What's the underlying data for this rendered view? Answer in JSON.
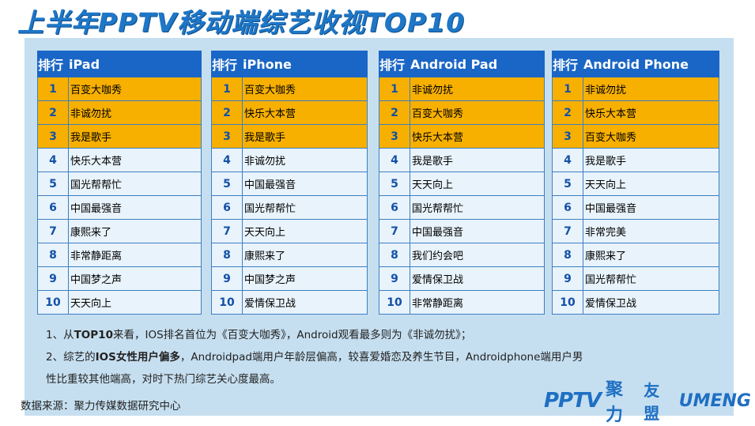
{
  "title": "上半年PPTV移动端综艺收视TOP10",
  "rank_header": "排行",
  "tables": [
    {
      "platform": "iPad",
      "rows": [
        {
          "n": "1",
          "name": "百变大咖秀"
        },
        {
          "n": "2",
          "name": "非诚勿扰"
        },
        {
          "n": "3",
          "name": "我是歌手"
        },
        {
          "n": "4",
          "name": "快乐大本营"
        },
        {
          "n": "5",
          "name": "国光帮帮忙"
        },
        {
          "n": "6",
          "name": "中国最强音"
        },
        {
          "n": "7",
          "name": "康熙来了"
        },
        {
          "n": "8",
          "name": "非常静距离"
        },
        {
          "n": "9",
          "name": "中国梦之声"
        },
        {
          "n": "10",
          "name": "天天向上"
        }
      ]
    },
    {
      "platform": "iPhone",
      "rows": [
        {
          "n": "1",
          "name": "百变大咖秀"
        },
        {
          "n": "2",
          "name": "快乐大本营"
        },
        {
          "n": "3",
          "name": "我是歌手"
        },
        {
          "n": "4",
          "name": "非诚勿扰"
        },
        {
          "n": "5",
          "name": "中国最强音"
        },
        {
          "n": "6",
          "name": "国光帮帮忙"
        },
        {
          "n": "7",
          "name": "天天向上"
        },
        {
          "n": "8",
          "name": "康熙来了"
        },
        {
          "n": "9",
          "name": "中国梦之声"
        },
        {
          "n": "10",
          "name": "爱情保卫战"
        }
      ]
    },
    {
      "platform": "Android Pad",
      "rows": [
        {
          "n": "1",
          "name": "非诚勿扰"
        },
        {
          "n": "2",
          "name": "百变大咖秀"
        },
        {
          "n": "3",
          "name": "快乐大本营"
        },
        {
          "n": "4",
          "name": "我是歌手"
        },
        {
          "n": "5",
          "name": "天天向上"
        },
        {
          "n": "6",
          "name": "国光帮帮忙"
        },
        {
          "n": "7",
          "name": "中国最强音"
        },
        {
          "n": "8",
          "name": "我们约会吧"
        },
        {
          "n": "9",
          "name": "爱情保卫战"
        },
        {
          "n": "10",
          "name": "非常静距离"
        }
      ]
    },
    {
      "platform": "Android Phone",
      "rows": [
        {
          "n": "1",
          "name": "非诚勿扰"
        },
        {
          "n": "2",
          "name": "快乐大本营"
        },
        {
          "n": "3",
          "name": "百变大咖秀"
        },
        {
          "n": "4",
          "name": "我是歌手"
        },
        {
          "n": "5",
          "name": "天天向上"
        },
        {
          "n": "6",
          "name": "中国最强音"
        },
        {
          "n": "7",
          "name": "非常完美"
        },
        {
          "n": "8",
          "name": "康熙来了"
        },
        {
          "n": "9",
          "name": "国光帮帮忙"
        },
        {
          "n": "10",
          "name": "爱情保卫战"
        }
      ]
    }
  ],
  "notes": {
    "line1_a": "1、从",
    "line1_b": "TOP10",
    "line1_c": "来看，IOS排名首位为《百变大咖秀》，Android观看最多则为《非诚勿扰》；",
    "line2_a": "2、综艺的",
    "line2_b": "IOS女性用户偏多",
    "line2_c": "，Androidpad端用户年龄层偏高，较喜爱婚恋及养生节目，Androidphone端用户男",
    "line3": "性比重较其他端高，对时下热门综艺关心度最高。"
  },
  "source": "数据来源：聚力传媒数据研究中心",
  "logos": {
    "pptv": "PPTV",
    "juli": "聚力",
    "youmeng": "友盟",
    "umeng": "UMENG"
  },
  "colors": {
    "header": "#1a66c6",
    "highlight": "#f7b000",
    "row": "#e8f3fb",
    "panel": "#c6dff0",
    "title": "#1e77c7"
  }
}
